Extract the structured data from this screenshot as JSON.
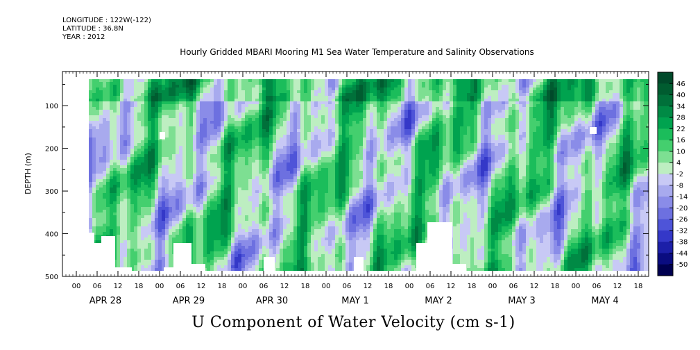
{
  "header": {
    "longitude": "LONGITUDE : 122W(-122)",
    "latitude": "LATITUDE : 36.8N",
    "year": "YEAR : 2012",
    "title": "Hourly Gridded MBARI Mooring M1 Sea Water Temperature and Salinity Observations"
  },
  "footer": {
    "variable_title": "U Component of Water Velocity (cm s-1)"
  },
  "chart_data": {
    "type": "heatmap",
    "title": "Hourly Gridded MBARI Mooring M1 Sea Water Temperature and Salinity Observations",
    "variable": "U Component of Water Velocity (cm s-1)",
    "xlabel": "",
    "ylabel": "DEPTH (m)",
    "x_hour_tick_labels": [
      "00",
      "06",
      "12",
      "18",
      "00",
      "06",
      "12",
      "18",
      "00",
      "06",
      "12",
      "18",
      "00",
      "06",
      "12",
      "18",
      "00",
      "06",
      "12",
      "18",
      "00",
      "06",
      "12",
      "18",
      "00",
      "06",
      "12",
      "18"
    ],
    "x_day_labels": [
      "APR 28",
      "APR 29",
      "APR 30",
      "MAY  1",
      "MAY  2",
      "MAY  3",
      "MAY  4"
    ],
    "y_tick_labels": [
      "100",
      "200",
      "300",
      "400",
      "500"
    ],
    "y_ticks": [
      100,
      200,
      300,
      400,
      500
    ],
    "ylim": [
      500,
      20
    ],
    "y_inverted": true,
    "colorbar_levels": [
      "46",
      "40",
      "34",
      "28",
      "22",
      "16",
      "10",
      "4",
      "-2",
      "-8",
      "-14",
      "-20",
      "-26",
      "-32",
      "-38",
      "-44",
      "-50"
    ],
    "colorbar_colors": [
      "#00492a",
      "#005c30",
      "#00703a",
      "#008a45",
      "#00a34f",
      "#1bbd5b",
      "#44cf6e",
      "#7ddf92",
      "#bdeec1",
      "#c8c9f5",
      "#a8aaee",
      "#8a8ce8",
      "#6d70e0",
      "#4e54d8",
      "#3438c8",
      "#1c1fa8",
      "#0a0c80",
      "#000050"
    ],
    "wave": {
      "components": [
        {
          "amp": 16,
          "kx": 0.045,
          "ky": 0.02,
          "phase": 0.3
        },
        {
          "amp": 9,
          "kx": 0.11,
          "ky": 0.008,
          "phase": 1.7
        },
        {
          "amp": 7,
          "kx": 0.02,
          "ky": 0.055,
          "phase": 2.6
        },
        {
          "amp": 6,
          "kx": 0.23,
          "ky": 0.004,
          "phase": 0.9
        },
        {
          "amp": 4,
          "kx": 0.07,
          "ky": 0.09,
          "phase": 4.1
        }
      ],
      "offset": 4
    }
  }
}
